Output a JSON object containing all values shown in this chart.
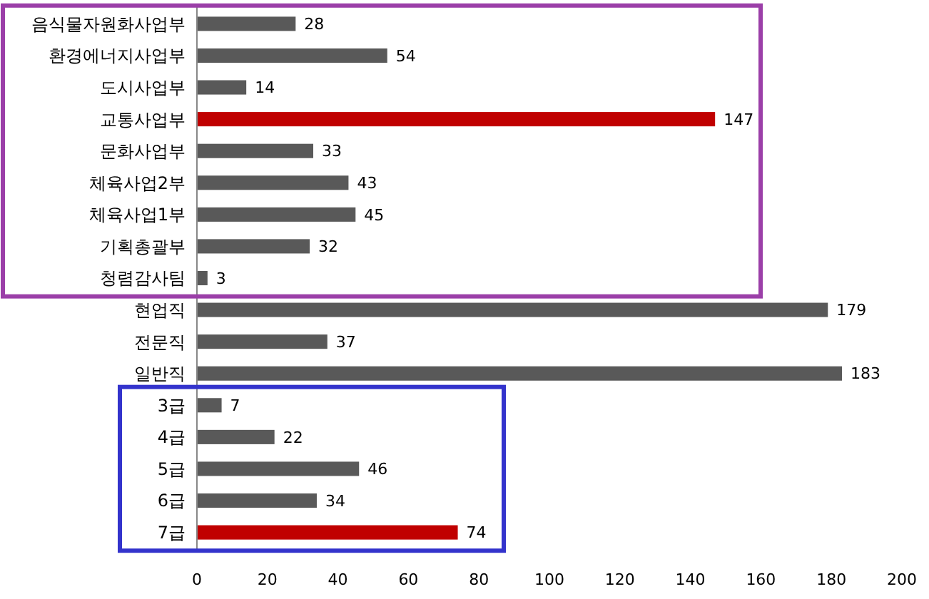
{
  "chart_data": {
    "type": "bar",
    "orientation": "horizontal",
    "categories": [
      "음식물자원화사업부",
      "환경에너지사업부",
      "도시사업부",
      "교통사업부",
      "문화사업부",
      "체육사업2부",
      "체육사업1부",
      "기획총괄부",
      "청렴감사팀",
      "현업직",
      "전문직",
      "일반직",
      "3급",
      "4급",
      "5급",
      "6급",
      "7급"
    ],
    "values": [
      28,
      54,
      14,
      147,
      33,
      43,
      45,
      32,
      3,
      179,
      37,
      183,
      7,
      22,
      46,
      34,
      74
    ],
    "colors": [
      "#595959",
      "#595959",
      "#595959",
      "#c00000",
      "#595959",
      "#595959",
      "#595959",
      "#595959",
      "#595959",
      "#595959",
      "#595959",
      "#595959",
      "#595959",
      "#595959",
      "#595959",
      "#595959",
      "#c00000"
    ],
    "xlim": [
      0,
      200
    ],
    "xticks": [
      0,
      20,
      40,
      60,
      80,
      100,
      120,
      140,
      160,
      180,
      200
    ],
    "data_labels": true
  }
}
